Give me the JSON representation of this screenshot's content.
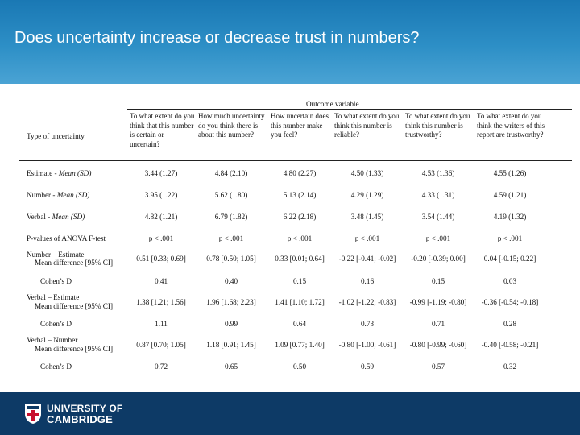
{
  "slide": {
    "title": "Does uncertainty increase or decrease trust in numbers?"
  },
  "table": {
    "group_header": "Outcome variable",
    "row_header_label": "Type of uncertainty",
    "columns": [
      "To what extent do you think that this number is certain or uncertain?",
      "How much uncertainty do you think there is about this number?",
      "How uncertain does this number make you feel?",
      "To what extent do you think this number is reliable?",
      "To what extent do you think this number is trustworthy?",
      "To what extent do you think the writers of this report are trustworthy?"
    ],
    "rows": {
      "estimate": {
        "label_a": "Estimate - ",
        "label_b": "Mean (SD)",
        "values": [
          "3.44 (1.27)",
          "4.84 (2.10)",
          "4.80 (2.27)",
          "4.50 (1.33)",
          "4.53 (1.36)",
          "4.55 (1.26)"
        ]
      },
      "number": {
        "label_a": "Number - ",
        "label_b": "Mean (SD)",
        "values": [
          "3.95 (1.22)",
          "5.62 (1.80)",
          "5.13 (2.14)",
          "4.29 (1.29)",
          "4.33 (1.31)",
          "4.59 (1.21)"
        ]
      },
      "verbal": {
        "label_a": "Verbal - ",
        "label_b": "Mean (SD)",
        "values": [
          "4.82 (1.21)",
          "6.79 (1.82)",
          "6.22 (2.18)",
          "3.48 (1.45)",
          "3.54 (1.44)",
          "4.19 (1.32)"
        ]
      },
      "anova": {
        "label": "P-values of ANOVA F-test",
        "values": [
          "p < .001",
          "p < .001",
          "p < .001",
          "p < .001",
          "p < .001",
          "p < .001"
        ]
      },
      "num_est": {
        "label_a": "Number – Estimate",
        "label_b": "Mean difference [95% CI]",
        "values": [
          "0.51 [0.33; 0.69]",
          "0.78 [0.50; 1.05]",
          "0.33 [0.01; 0.64]",
          "-0.22 [-0.41; -0.02]",
          "-0.20 [-0.39; 0.00]",
          "0.04 [-0.15; 0.22]"
        ],
        "cohen_label": "Cohen’s D",
        "cohen": [
          "0.41",
          "0.40",
          "0.15",
          "0.16",
          "0.15",
          "0.03"
        ]
      },
      "verb_est": {
        "label_a": "Verbal – Estimate",
        "label_b": "Mean difference [95% CI]",
        "values": [
          "1.38 [1.21; 1.56]",
          "1.96 [1.68; 2.23]",
          "1.41 [1.10; 1.72]",
          "-1.02 [-1.22; -0.83]",
          "-0.99 [-1.19; -0.80]",
          "-0.36 [-0.54; -0.18]"
        ],
        "cohen_label": "Cohen’s D",
        "cohen": [
          "1.11",
          "0.99",
          "0.64",
          "0.73",
          "0.71",
          "0.28"
        ]
      },
      "verb_num": {
        "label_a": "Verbal – Number",
        "label_b": "Mean difference [95% CI]",
        "values": [
          "0.87 [0.70; 1.05]",
          "1.18 [0.91; 1.45]",
          "1.09 [0.77; 1.40]",
          "-0.80 [-1.00; -0.61]",
          "-0.80 [-0.99; -0.60]",
          "-0.40 [-0.58; -0.21]"
        ],
        "cohen_label": "Cohen’s D",
        "cohen": [
          "0.72",
          "0.65",
          "0.50",
          "0.59",
          "0.57",
          "0.32"
        ]
      }
    }
  },
  "footer": {
    "logo_line1": "UNIVERSITY OF",
    "logo_line2": "CAMBRIDGE"
  }
}
